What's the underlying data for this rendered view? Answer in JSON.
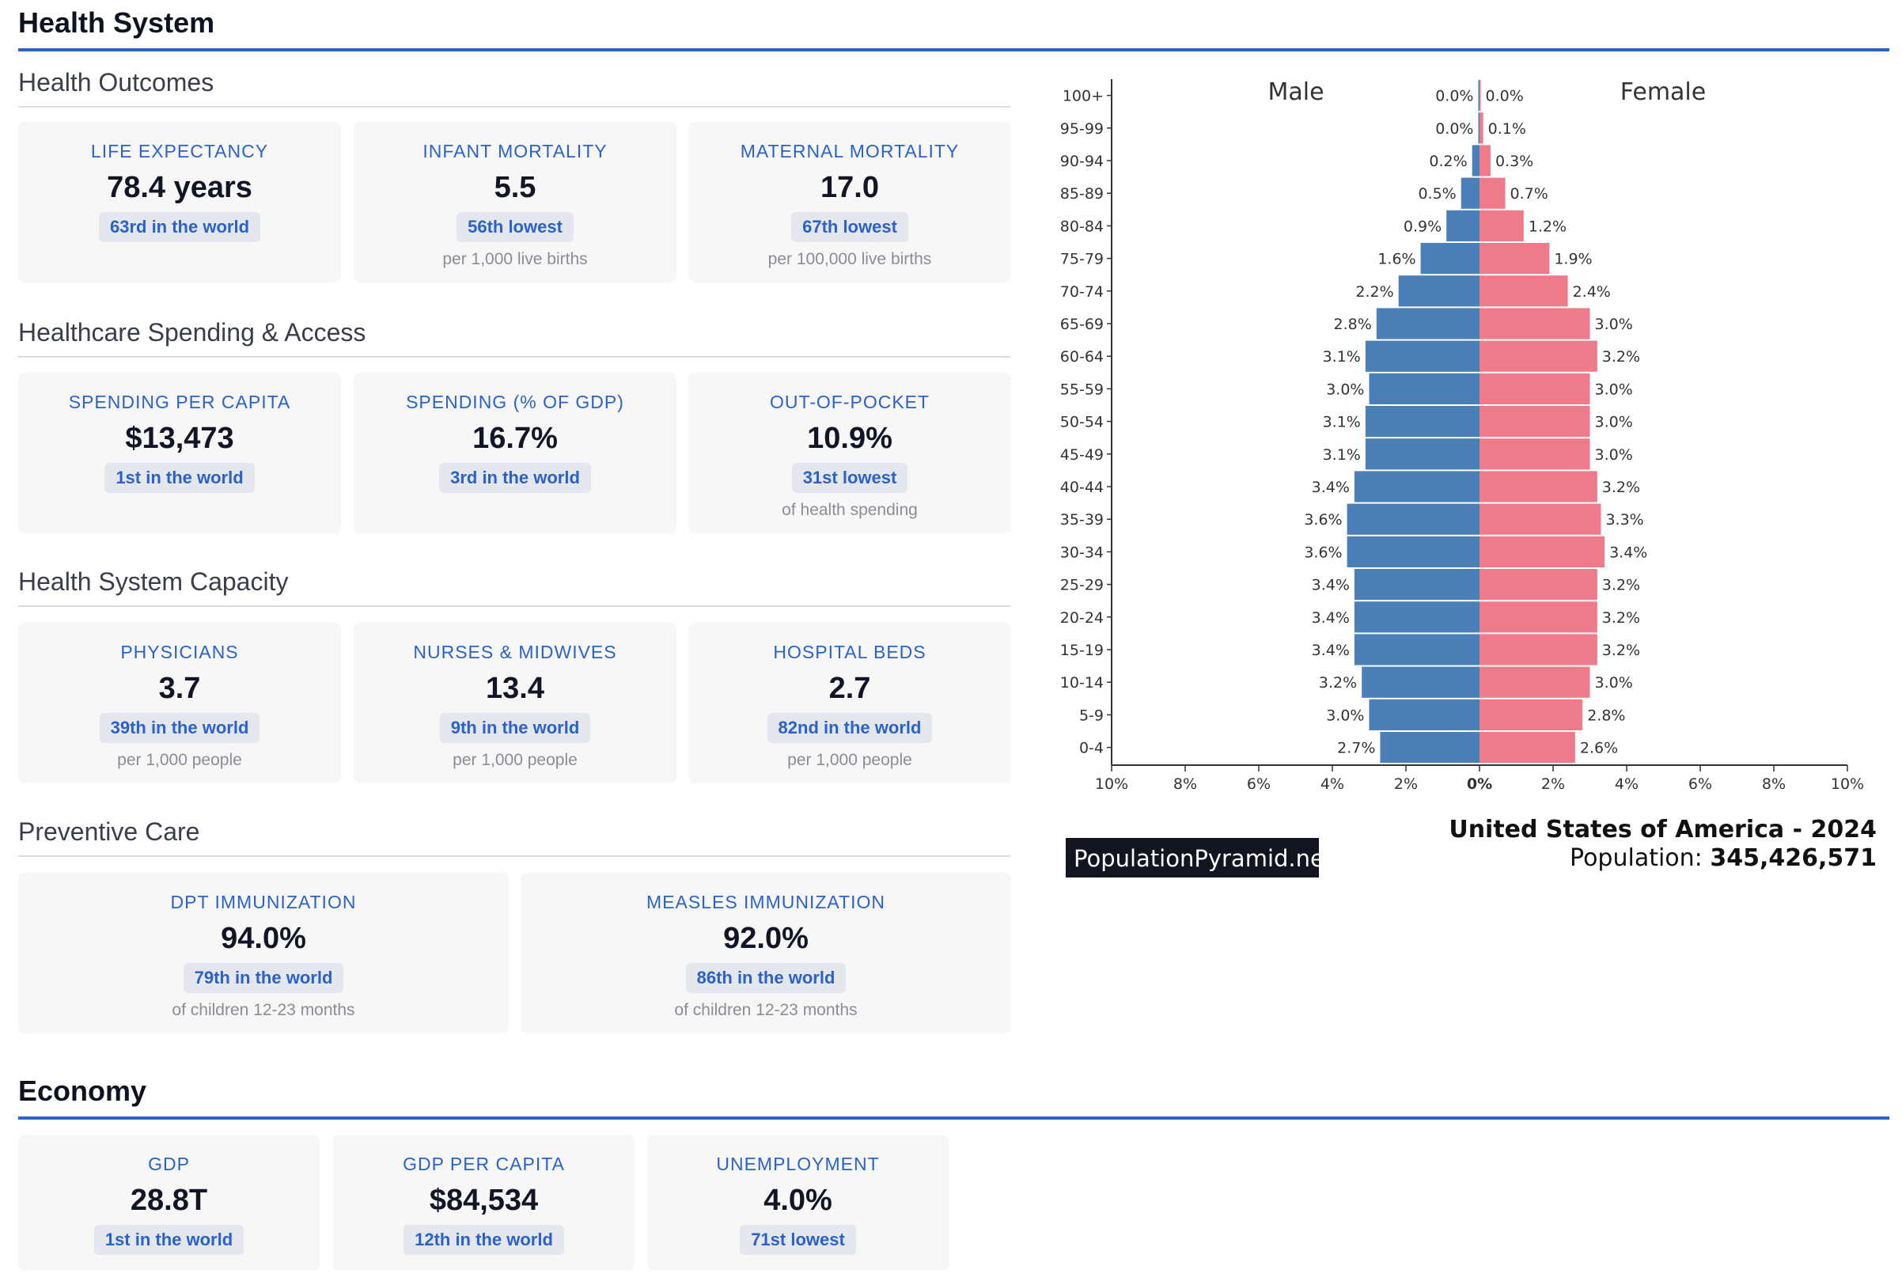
{
  "health_system": {
    "title": "Health System",
    "outcomes": {
      "title": "Health Outcomes",
      "cards": [
        {
          "label": "LIFE EXPECTANCY",
          "value": "78.4 years",
          "badge": "63rd in the world",
          "note": ""
        },
        {
          "label": "INFANT MORTALITY",
          "value": "5.5",
          "badge": "56th lowest",
          "note": "per 1,000 live births"
        },
        {
          "label": "MATERNAL MORTALITY",
          "value": "17.0",
          "badge": "67th lowest",
          "note": "per 100,000 live births"
        }
      ]
    },
    "spending": {
      "title": "Healthcare Spending & Access",
      "cards": [
        {
          "label": "SPENDING PER CAPITA",
          "value": "$13,473",
          "badge": "1st in the world",
          "note": ""
        },
        {
          "label": "SPENDING (% OF GDP)",
          "value": "16.7%",
          "badge": "3rd in the world",
          "note": ""
        },
        {
          "label": "OUT-OF-POCKET",
          "value": "10.9%",
          "badge": "31st lowest",
          "note": "of health spending"
        }
      ]
    },
    "capacity": {
      "title": "Health System Capacity",
      "cards": [
        {
          "label": "PHYSICIANS",
          "value": "3.7",
          "badge": "39th in the world",
          "note": "per 1,000 people"
        },
        {
          "label": "NURSES & MIDWIVES",
          "value": "13.4",
          "badge": "9th in the world",
          "note": "per 1,000 people"
        },
        {
          "label": "HOSPITAL BEDS",
          "value": "2.7",
          "badge": "82nd in the world",
          "note": "per 1,000 people"
        }
      ]
    },
    "preventive": {
      "title": "Preventive Care",
      "cards": [
        {
          "label": "DPT IMMUNIZATION",
          "value": "94.0%",
          "badge": "79th in the world",
          "note": "of children 12-23 months"
        },
        {
          "label": "MEASLES IMMUNIZATION",
          "value": "92.0%",
          "badge": "86th in the world",
          "note": "of children 12-23 months"
        }
      ]
    }
  },
  "economy": {
    "title": "Economy",
    "cards": [
      {
        "label": "GDP",
        "value": "28.8T",
        "badge": "1st in the world",
        "note": ""
      },
      {
        "label": "GDP PER CAPITA",
        "value": "$84,534",
        "badge": "12th in the world",
        "note": ""
      },
      {
        "label": "UNEMPLOYMENT",
        "value": "4.0%",
        "badge": "71st lowest",
        "note": ""
      }
    ]
  },
  "chart_data": {
    "type": "bar",
    "orientation": "horizontal-pyramid",
    "categories": [
      "100+",
      "95-99",
      "90-94",
      "85-89",
      "80-84",
      "75-79",
      "70-74",
      "65-69",
      "60-64",
      "55-59",
      "50-54",
      "45-49",
      "40-44",
      "35-39",
      "30-34",
      "25-29",
      "20-24",
      "15-19",
      "10-14",
      "5-9",
      "0-4"
    ],
    "series": [
      {
        "name": "Male",
        "color": "#4a7fb8",
        "values": [
          0.0,
          0.0,
          0.2,
          0.5,
          0.9,
          1.6,
          2.2,
          2.8,
          3.1,
          3.0,
          3.1,
          3.1,
          3.4,
          3.6,
          3.6,
          3.4,
          3.4,
          3.4,
          3.2,
          3.0,
          2.7
        ]
      },
      {
        "name": "Female",
        "color": "#ef7b8a",
        "values": [
          0.0,
          0.1,
          0.3,
          0.7,
          1.2,
          1.9,
          2.4,
          3.0,
          3.2,
          3.0,
          3.0,
          3.0,
          3.2,
          3.3,
          3.4,
          3.2,
          3.2,
          3.2,
          3.0,
          2.8,
          2.6
        ]
      }
    ],
    "xticks": [
      "10%",
      "8%",
      "6%",
      "4%",
      "2%",
      "0%",
      "2%",
      "4%",
      "6%",
      "8%",
      "10%"
    ],
    "xlim": [
      -10,
      10
    ],
    "title": "United States of America - 2024",
    "population_label": "Population:",
    "population_value": "345,426,571",
    "watermark": "PopulationPyramid.net"
  }
}
